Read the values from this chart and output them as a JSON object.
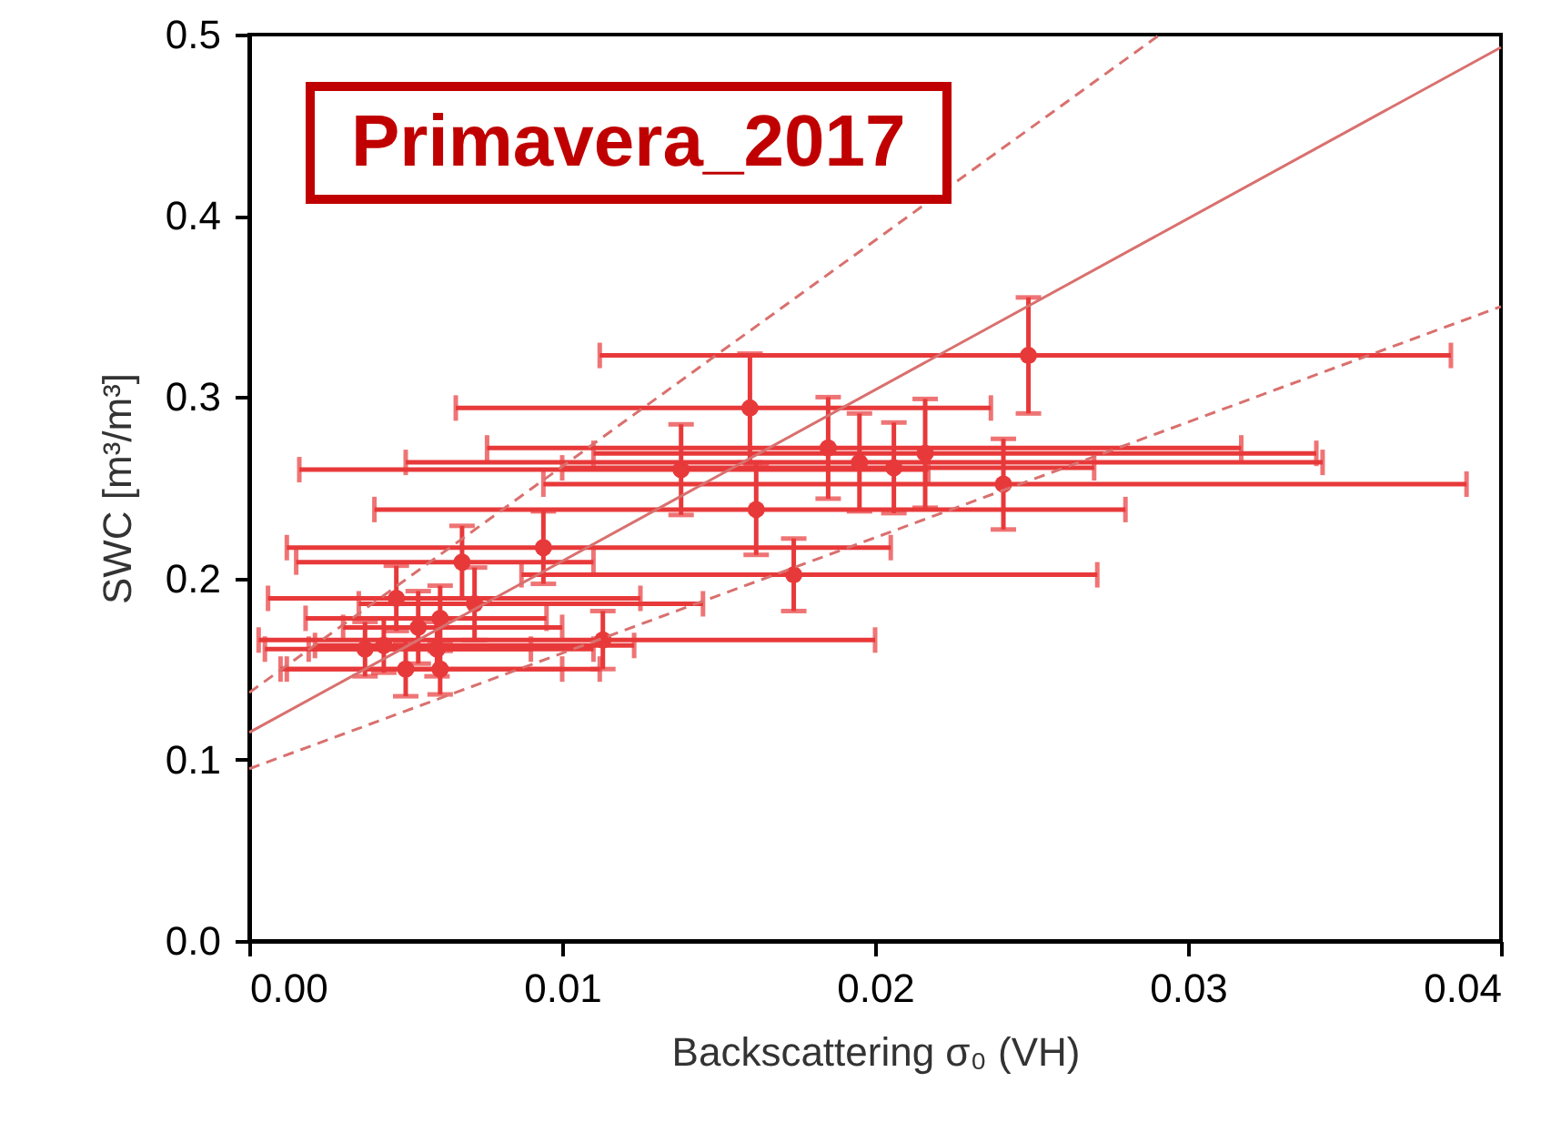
{
  "chart_data": {
    "type": "scatter",
    "xlabel": "Backscattering σ₀ (VH)",
    "ylabel": "SWC [m³/m³]",
    "annotations": [
      "Primavera_2017"
    ],
    "xlim": [
      0,
      0.04
    ],
    "xticks": [
      {
        "value": 0,
        "label": "0.00"
      },
      {
        "value": 0.01,
        "label": "0.01"
      },
      {
        "value": 0.02,
        "label": "0.02"
      },
      {
        "value": 0.03,
        "label": "0.03"
      },
      {
        "value": 0.04,
        "label": "0.04"
      }
    ],
    "ylim": [
      0,
      0.5
    ],
    "yticks": [
      {
        "value": 0,
        "label": "0.0"
      },
      {
        "value": 0.1,
        "label": "0.1"
      },
      {
        "value": 0.2,
        "label": "0.2"
      },
      {
        "value": 0.3,
        "label": "0.3"
      },
      {
        "value": 0.4,
        "label": "0.4"
      },
      {
        "value": 0.5,
        "label": "0.5"
      }
    ],
    "grid": false,
    "marker": "circle",
    "series": [
      {
        "color": "#e8393a",
        "x": [
          0.0249,
          0.016,
          0.0185,
          0.0195,
          0.0216,
          0.0138,
          0.0206,
          0.0241,
          0.0162,
          0.0094,
          0.0174,
          0.0068,
          0.0047,
          0.0061,
          0.0072,
          0.0113,
          0.0043,
          0.0037,
          0.006,
          0.005,
          0.0061,
          0.0054
        ],
        "values": [
          0.323,
          0.294,
          0.272,
          0.264,
          0.269,
          0.26,
          0.261,
          0.252,
          0.238,
          0.217,
          0.202,
          0.209,
          0.189,
          0.178,
          0.186,
          0.166,
          0.163,
          0.161,
          0.161,
          0.15,
          0.15,
          0.173
        ],
        "errors": [
          0.032,
          0.03,
          0.028,
          0.027,
          0.03,
          0.025,
          0.025,
          0.025,
          0.025,
          0.02,
          0.02,
          0.02,
          0.018,
          0.018,
          0.02,
          0.016,
          0.015,
          0.015,
          0.015,
          0.015,
          0.014,
          0.02
        ],
        "xerrors": [
          [
            0.0112,
            0.0384
          ],
          [
            0.0066,
            0.0237
          ],
          [
            0.0076,
            0.0317
          ],
          [
            0.005,
            0.0343
          ],
          [
            0.011,
            0.0341
          ],
          [
            0.0016,
            0.0217
          ],
          [
            0.01,
            0.027
          ],
          [
            0.0094,
            0.0389
          ],
          [
            0.004,
            0.028
          ],
          [
            0.0012,
            0.0205
          ],
          [
            0.0087,
            0.0271
          ],
          [
            0.0015,
            0.011
          ],
          [
            0.0006,
            0.0125
          ],
          [
            0.0018,
            0.0095
          ],
          [
            0.0035,
            0.0145
          ],
          [
            0.0003,
            0.02
          ],
          [
            0.0021,
            0.0123
          ],
          [
            0.0005,
            0.011
          ],
          [
            0.0019,
            0.009
          ],
          [
            0.0012,
            0.0112
          ],
          [
            0.001,
            0.01
          ],
          [
            0.003,
            0.01
          ]
        ]
      },
      {
        "type": "line",
        "color": "#d9706e",
        "line_style": "solid",
        "marker": "none",
        "x": [
          0,
          0.04
        ],
        "values": [
          0.115,
          0.493
        ]
      },
      {
        "type": "line",
        "color": "#d9706e",
        "line_style": "dashed",
        "marker": "none",
        "x": [
          0,
          0.0291
        ],
        "values": [
          0.137,
          0.5
        ]
      },
      {
        "type": "line",
        "color": "#d9706e",
        "line_style": "dashed",
        "marker": "none",
        "x": [
          0,
          0.04
        ],
        "values": [
          0.095,
          0.35
        ]
      }
    ]
  }
}
